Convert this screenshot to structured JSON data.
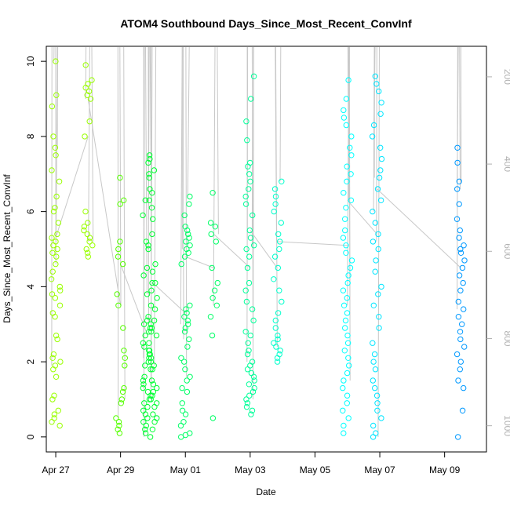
{
  "chart_data": {
    "type": "scatter",
    "title": "ATOM4 Southbound Days_Since_Most_Recent_ConvInf",
    "xlabel": "Date",
    "ylabel": "Days_Since_Most_Recent_ConvInf",
    "x_ticks": [
      "Apr 27",
      "Apr 29",
      "May 01",
      "May 03",
      "May 05",
      "May 07",
      "May 09"
    ],
    "y_ticks": [
      "0",
      "2",
      "4",
      "6",
      "8",
      "10"
    ],
    "y2_ticks": [
      "200",
      "400",
      "600",
      "800",
      "1000"
    ],
    "xlim": [
      "2020-04-26T17:00",
      "2020-05-10T07:00"
    ],
    "ylim": [
      -0.4,
      10.4
    ],
    "y2lim": [
      1060,
      130
    ],
    "grid": false,
    "legend": "none",
    "point_style": "open circles",
    "line_color": "#c8c8c8",
    "colors": [
      "#99ff00",
      "#55ff00",
      "#00ff33",
      "#00ff66",
      "#00ff99",
      "#00ffcc",
      "#00ffff",
      "#00e5ff",
      "#0099ff"
    ],
    "series": [
      {
        "x": "2020-04-27T00:00",
        "color": "#99ff00",
        "y": [
          10.0,
          9.1,
          8.8,
          8.0,
          7.7,
          7.5,
          7.1,
          6.8,
          6.4,
          6.1,
          6.0,
          5.7,
          5.4,
          5.3,
          5.2,
          5.1,
          5.0,
          4.9,
          4.8,
          4.6,
          4.4,
          4.2,
          4.0,
          3.9,
          3.8,
          3.7,
          3.5,
          3.3,
          3.2,
          2.7,
          2.6,
          2.2,
          2.1,
          2.0,
          1.9,
          1.8,
          1.6,
          1.1,
          1.0,
          0.7,
          0.6,
          0.5,
          0.4,
          0.3
        ]
      },
      {
        "x": "2020-04-28T00:00",
        "color": "#99ff00",
        "y": [
          9.9,
          9.5,
          9.4,
          9.3,
          9.2,
          9.1,
          9.0,
          8.4,
          8.0,
          6.0,
          5.7,
          5.6,
          5.5,
          5.4,
          5.3,
          5.2,
          5.1,
          5.0,
          4.9,
          4.8
        ]
      },
      {
        "x": "2020-04-29T00:00",
        "color": "#55ff00",
        "y": [
          6.9,
          6.3,
          6.2,
          5.2,
          5.0,
          4.8,
          4.6,
          3.8,
          3.5,
          2.9,
          2.3,
          2.1,
          1.9,
          1.3,
          1.2,
          1.0,
          0.9,
          0.5,
          0.4,
          0.3,
          0.2,
          0.1
        ]
      },
      {
        "x": "2020-04-29T20:00",
        "color": "#00ff33",
        "y": [
          6.9,
          6.6,
          6.3,
          6.1,
          5.9,
          5.2,
          5.0,
          4.5,
          4.3,
          4.1,
          3.8,
          3.5,
          3.2,
          3.1,
          3.0,
          2.9,
          2.8,
          2.7,
          2.5,
          2.4,
          2.3,
          2.2,
          2.1,
          2.0,
          1.9,
          1.8,
          1.6,
          1.5,
          1.4,
          1.3,
          1.2,
          1.1,
          1.0,
          0.9,
          0.8,
          0.7,
          0.6,
          0.5,
          0.4,
          0.3,
          0.2,
          0.1,
          0.0
        ]
      },
      {
        "x": "2020-04-30T00:00",
        "color": "#00ff33",
        "y": [
          7.5,
          7.4,
          7.3,
          7.1,
          7.0,
          6.5,
          6.3,
          5.8,
          5.4,
          5.1,
          4.6,
          4.4,
          4.1,
          3.9,
          3.7,
          3.4,
          3.1,
          3.0,
          2.9,
          2.8,
          2.7,
          2.5,
          2.3,
          2.2,
          2.1,
          2.0,
          1.9,
          1.8,
          1.5,
          1.4,
          1.3,
          1.2,
          1.1,
          1.0,
          0.9,
          0.8,
          0.6,
          0.5,
          0.4,
          0.2
        ]
      },
      {
        "x": "2020-05-01T00:00",
        "color": "#00ff66",
        "y": [
          6.4,
          6.2,
          5.9,
          5.6,
          5.5,
          5.4,
          5.3,
          5.2,
          5.1,
          5.0,
          4.9,
          4.8,
          4.6,
          3.5,
          3.4,
          3.3,
          3.2,
          3.1,
          3.0,
          2.9,
          2.8,
          2.6,
          2.4,
          2.1,
          2.0,
          1.8,
          1.6,
          1.5,
          1.3,
          1.2,
          0.9,
          0.7,
          0.6,
          0.4,
          0.3,
          0.1,
          0.05,
          0.0
        ]
      },
      {
        "x": "2020-05-01T21:00",
        "color": "#00ff66",
        "y": [
          6.5,
          5.7,
          5.6,
          5.4,
          5.2,
          4.5,
          4.1,
          3.9,
          3.7,
          3.5,
          3.2,
          2.7,
          0.5
        ]
      },
      {
        "x": "2020-05-03T00:00",
        "color": "#00ff99",
        "y": [
          9.6,
          9.0,
          8.4,
          7.9,
          7.3,
          7.2,
          7.0,
          6.8,
          6.6,
          6.4,
          6.2,
          5.9,
          5.5,
          5.3,
          5.1,
          5.0,
          4.8,
          4.5,
          4.1,
          3.9,
          3.6,
          3.4,
          3.1,
          2.8,
          2.7,
          2.5,
          2.3,
          2.2,
          2.0,
          1.9,
          1.8,
          1.7,
          1.6,
          1.5,
          1.4,
          1.3,
          1.2,
          1.1,
          1.0,
          0.9,
          0.8,
          0.7,
          0.6
        ]
      },
      {
        "x": "2020-05-03T20:00",
        "color": "#00ffcc",
        "y": [
          6.8,
          6.6,
          6.4,
          6.2,
          6.0,
          5.7,
          5.4,
          5.2,
          5.0,
          4.8,
          4.5,
          4.2,
          3.9,
          3.6,
          3.3,
          3.1,
          2.9,
          2.7,
          2.6,
          2.5,
          2.4,
          2.3,
          2.2,
          2.1,
          2.0
        ]
      },
      {
        "x": "2020-05-06T00:00",
        "color": "#00ffff",
        "y": [
          9.5,
          9.0,
          8.7,
          8.5,
          8.3,
          8.0,
          7.7,
          7.5,
          7.2,
          7.0,
          6.8,
          6.5,
          6.3,
          6.1,
          5.8,
          5.5,
          5.3,
          5.1,
          4.9,
          4.7,
          4.5,
          4.3,
          4.1,
          3.9,
          3.7,
          3.5,
          3.3,
          3.1,
          2.9,
          2.7,
          2.5,
          2.3,
          2.1,
          1.9,
          1.7,
          1.5,
          1.3,
          1.1,
          0.9,
          0.7,
          0.5,
          0.3,
          0.1
        ]
      },
      {
        "x": "2020-05-06T22:00",
        "color": "#00e5ff",
        "y": [
          9.6,
          9.4,
          9.2,
          8.9,
          8.6,
          8.3,
          8.0,
          7.7,
          7.4,
          7.1,
          6.9,
          6.6,
          6.3,
          6.0,
          5.7,
          5.4,
          5.2,
          5.0,
          4.7,
          4.4,
          4.0,
          3.8,
          3.5,
          3.2,
          2.9,
          2.5,
          2.2,
          2.0,
          1.8,
          1.5,
          1.3,
          1.1,
          0.9,
          0.7,
          0.5,
          0.3,
          0.1,
          0.0
        ]
      },
      {
        "x": "2020-05-09T12:00",
        "color": "#0099ff",
        "y": [
          7.7,
          7.3,
          6.8,
          6.6,
          6.2,
          5.8,
          5.5,
          5.3,
          5.1,
          5.0,
          4.9,
          4.7,
          4.5,
          4.3,
          4.1,
          3.9,
          3.6,
          3.4,
          3.2,
          3.0,
          2.8,
          2.6,
          2.4,
          2.2,
          2.0,
          1.8,
          1.5,
          1.3,
          0.7,
          0.0
        ]
      }
    ]
  }
}
